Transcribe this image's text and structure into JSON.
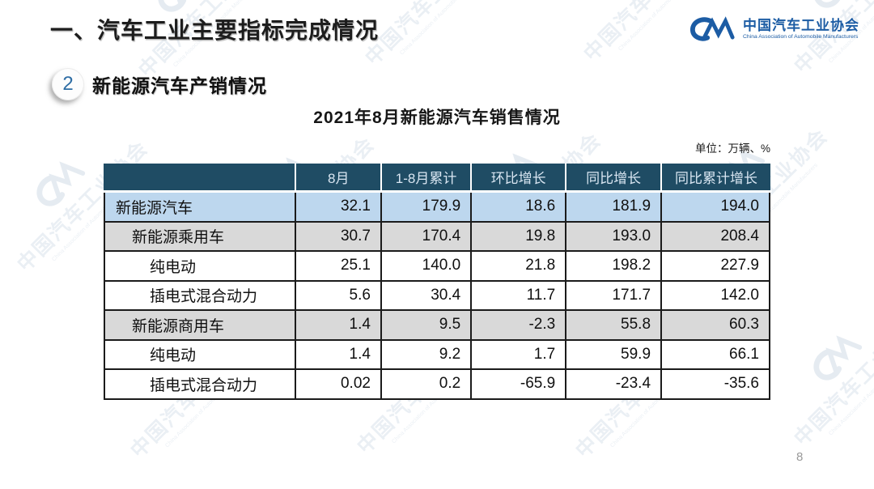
{
  "header": {
    "title": "一、汽车工业主要指标完成情况"
  },
  "logo": {
    "name_cn": "中国汽车工业协会",
    "name_en": "China Association of Automobile Manufacturers"
  },
  "section": {
    "number": "2",
    "title": "新能源汽车产销情况"
  },
  "table": {
    "title": "2021年8月新能源汽车销售情况",
    "unit_note": "单位：万辆、%",
    "columns": [
      "",
      "8月",
      "1-8月累计",
      "环比增长",
      "同比增长",
      "同比累计增长"
    ],
    "rows": [
      {
        "label": "新能源汽车",
        "values": [
          "32.1",
          "179.9",
          "18.6",
          "181.9",
          "194.0"
        ]
      },
      {
        "label": "新能源乘用车",
        "values": [
          "30.7",
          "170.4",
          "19.8",
          "193.0",
          "208.4"
        ]
      },
      {
        "label": "纯电动",
        "values": [
          "25.1",
          "140.0",
          "21.8",
          "198.2",
          "227.9"
        ]
      },
      {
        "label": "插电式混合动力",
        "values": [
          "5.6",
          "30.4",
          "11.7",
          "171.7",
          "142.0"
        ]
      },
      {
        "label": "新能源商用车",
        "values": [
          "1.4",
          "9.5",
          "-2.3",
          "55.8",
          "60.3"
        ]
      },
      {
        "label": "纯电动",
        "values": [
          "1.4",
          "9.2",
          "1.7",
          "59.9",
          "66.1"
        ]
      },
      {
        "label": "插电式混合动力",
        "values": [
          "0.02",
          "0.2",
          "-65.9",
          "-23.4",
          "-35.6"
        ]
      }
    ]
  },
  "watermark": {
    "text_cn": "中国汽车工业协会",
    "text_en": "China Association of Automobile Manufacturers"
  },
  "footer": {
    "page_number": "8"
  },
  "colors": {
    "header_bg": "#1f4c64",
    "row_highlight": "#bdd7ee",
    "row_band": "#d9d9d9",
    "brand_blue": "#1c5ca4",
    "badge_number": "#2e6da4",
    "border": "#1b1b1b"
  }
}
